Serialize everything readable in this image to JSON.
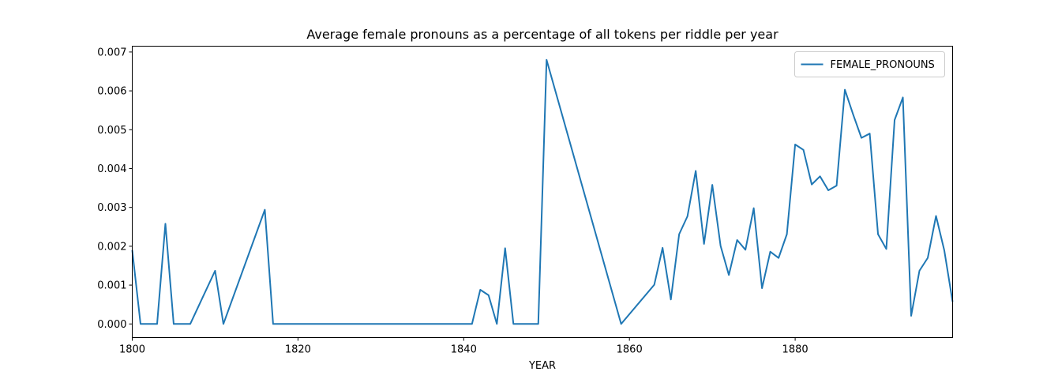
{
  "chart_data": {
    "type": "line",
    "title": "Average female pronouns as a percentage of all tokens per riddle per year",
    "xlabel": "YEAR",
    "ylabel": "",
    "xlim": [
      1800,
      1899
    ],
    "ylim": [
      -0.00035,
      0.00715
    ],
    "xticks": [
      1800,
      1820,
      1840,
      1860,
      1880
    ],
    "yticks": [
      0.0,
      0.001,
      0.002,
      0.003,
      0.004,
      0.005,
      0.006,
      0.007
    ],
    "ytick_labels": [
      "0.000",
      "0.001",
      "0.002",
      "0.003",
      "0.004",
      "0.005",
      "0.006",
      "0.007"
    ],
    "xtick_labels": [
      "1800",
      "1820",
      "1840",
      "1860",
      "1880"
    ],
    "legend": {
      "position": "upper right"
    },
    "grid": false,
    "color": "#1f77b4",
    "series": [
      {
        "name": "FEMALE_PRONOUNS",
        "x": [
          1800,
          1801,
          1803,
          1804,
          1805,
          1807,
          1810,
          1811,
          1816,
          1817,
          1841,
          1842,
          1843,
          1844,
          1845,
          1846,
          1849,
          1850,
          1859,
          1863,
          1864,
          1865,
          1866,
          1867,
          1868,
          1869,
          1870,
          1871,
          1872,
          1873,
          1874,
          1875,
          1876,
          1877,
          1878,
          1879,
          1880,
          1881,
          1882,
          1883,
          1884,
          1885,
          1886,
          1887,
          1888,
          1889,
          1890,
          1891,
          1892,
          1893,
          1894,
          1895,
          1896,
          1897,
          1898,
          1899
        ],
        "values": [
          0.0019,
          0.0,
          0.0,
          0.00258,
          0.0,
          0.0,
          0.00137,
          0.0,
          0.00294,
          0.0,
          0.0,
          0.00088,
          0.00074,
          0.0,
          0.00195,
          0.0,
          0.0,
          0.0068,
          0.0,
          0.00101,
          0.00196,
          0.00063,
          0.00231,
          0.00277,
          0.00394,
          0.00206,
          0.00358,
          0.00201,
          0.00126,
          0.00216,
          0.00191,
          0.00298,
          0.00092,
          0.00186,
          0.0017,
          0.00231,
          0.00462,
          0.00448,
          0.00359,
          0.0038,
          0.00344,
          0.00356,
          0.00603,
          0.00539,
          0.00479,
          0.0049,
          0.00231,
          0.00193,
          0.00525,
          0.00583,
          0.00021,
          0.00137,
          0.0017,
          0.00278,
          0.00189,
          0.00057
        ]
      }
    ]
  }
}
